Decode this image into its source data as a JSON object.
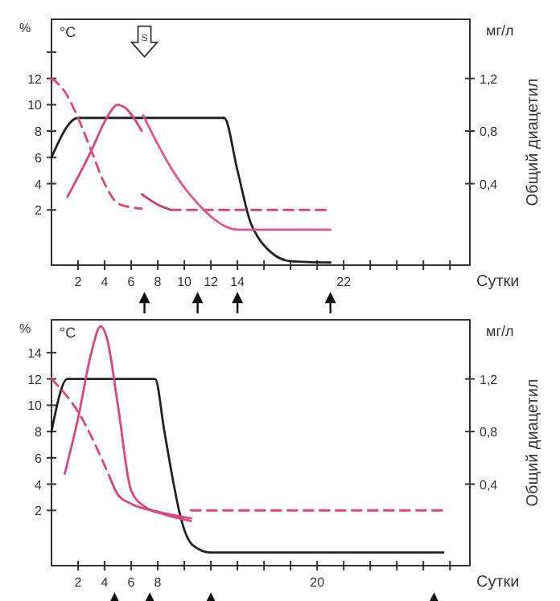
{
  "chart_data": [
    {
      "type": "line",
      "xlabel": "Сутки",
      "ylabel": "%",
      "y2label": "Общий диацетил",
      "annotations": [
        "°C",
        "мг/л",
        {
          "text": "S",
          "x": 7,
          "y": 15
        }
      ],
      "xlim": [
        0,
        31.5
      ],
      "xticks": [
        2,
        4,
        6,
        8,
        10,
        12,
        14,
        {
          "value": 16,
          "label": null
        },
        {
          "value": 18,
          "label": null
        },
        {
          "value": 20,
          "label": null
        },
        22,
        {
          "value": 24,
          "label": null
        },
        {
          "value": 26,
          "label": null
        },
        {
          "value": 28,
          "label": null
        },
        {
          "value": 30,
          "label": null
        }
      ],
      "ylim": [
        -2.2,
        16.5
      ],
      "yticks": [
        2,
        4,
        6,
        8,
        10,
        12,
        {
          "value": 14,
          "label": null
        }
      ],
      "y2lim": [
        -0.22,
        1.65
      ],
      "y2ticks": [
        {
          "value": 0.4,
          "label": "0,4"
        },
        {
          "value": 0.8,
          "label": "0,8"
        },
        {
          "value": 1.2,
          "label": "1,2"
        }
      ],
      "series": [
        {
          "color": "#222222",
          "line_style": "solid",
          "x": [
            0,
            2,
            13,
            14,
            15,
            15.5,
            16.5,
            18,
            21
          ],
          "values": [
            6,
            9,
            9,
            5,
            1,
            0,
            -1.2,
            -1.9,
            -2
          ]
        },
        {
          "color": "#d9467f",
          "line_style": "dashed",
          "x": [
            0,
            1,
            2,
            3,
            4,
            5,
            6,
            6.8
          ],
          "values": [
            12,
            11,
            9,
            6.5,
            4,
            2.5,
            2.2,
            2.1
          ]
        },
        {
          "color": "#c93a73",
          "line_style": "solid",
          "x": [
            6.8,
            8,
            9
          ],
          "values": [
            3.2,
            2.4,
            2
          ]
        },
        {
          "color": "#d9467f",
          "line_style": "dashed",
          "x": [
            9,
            21
          ],
          "values": [
            2,
            2
          ]
        },
        {
          "color": "#d9467f",
          "line_style": "solid",
          "x": [
            1.2,
            3,
            4,
            5,
            5.5,
            6.8
          ],
          "values": [
            3,
            6.5,
            8.7,
            10,
            9.8,
            8
          ]
        },
        {
          "color": "#e2558d",
          "line_style": "solid",
          "x": [
            6.9,
            8,
            9,
            10,
            11,
            12,
            13,
            14,
            21
          ],
          "values": [
            9.2,
            7,
            5.2,
            3.7,
            2.5,
            1.5,
            0.8,
            0.5,
            0.5
          ]
        }
      ]
    },
    {
      "type": "line",
      "xlabel": "Сутки",
      "ylabel": "%",
      "y2label": "Общий диацетил",
      "annotations": [
        "°C",
        "мг/л"
      ],
      "xlim": [
        0,
        31.5
      ],
      "xticks": [
        2,
        4,
        6,
        8,
        {
          "value": 10,
          "label": null
        },
        {
          "value": 12,
          "label": null
        },
        {
          "value": 14,
          "label": null
        },
        {
          "value": 16,
          "label": null
        },
        {
          "value": 18,
          "label": null
        },
        20,
        {
          "value": 22,
          "label": null
        },
        {
          "value": 24,
          "label": null
        },
        {
          "value": 26,
          "label": null
        },
        {
          "value": 28,
          "label": null
        },
        {
          "value": 30,
          "label": null
        }
      ],
      "ylim": [
        -2.2,
        16.5
      ],
      "yticks": [
        2,
        4,
        6,
        8,
        10,
        12,
        14
      ],
      "y2lim": [
        -0.22,
        1.65
      ],
      "y2ticks": [
        {
          "value": 0.4,
          "label": "0,4"
        },
        {
          "value": 0.8,
          "label": "0,8"
        },
        {
          "value": 1.2,
          "label": "1,2"
        }
      ],
      "series": [
        {
          "color": "#222222",
          "line_style": "solid",
          "x": [
            0,
            1.2,
            7.8,
            8.5,
            9.2,
            9.6,
            10.2,
            11,
            12,
            29.5
          ],
          "values": [
            8,
            12,
            12,
            8,
            4,
            2,
            0,
            -0.9,
            -1.2,
            -1.2
          ]
        },
        {
          "color": "#d9467f",
          "line_style": "solid",
          "x": [
            1,
            2,
            3,
            3.7,
            4.2,
            5,
            6,
            7,
            8.5,
            10.5
          ],
          "values": [
            4.8,
            9,
            14,
            16,
            15,
            10,
            3.5,
            2.3,
            1.7,
            1.2
          ]
        },
        {
          "color": "#d9467f",
          "line_style": "dashed",
          "x": [
            0,
            2,
            4.4
          ],
          "values": [
            12,
            9.5,
            4.5
          ]
        },
        {
          "color": "#d9467f",
          "line_style": "solid",
          "x": [
            4.4,
            5,
            6,
            8,
            10.5
          ],
          "values": [
            4.5,
            3.2,
            2.5,
            1.9,
            1.4
          ]
        },
        {
          "color": "#d9467f",
          "line_style": "dashed",
          "x": [
            10.5,
            29.5
          ],
          "values": [
            2,
            2
          ]
        }
      ]
    }
  ]
}
